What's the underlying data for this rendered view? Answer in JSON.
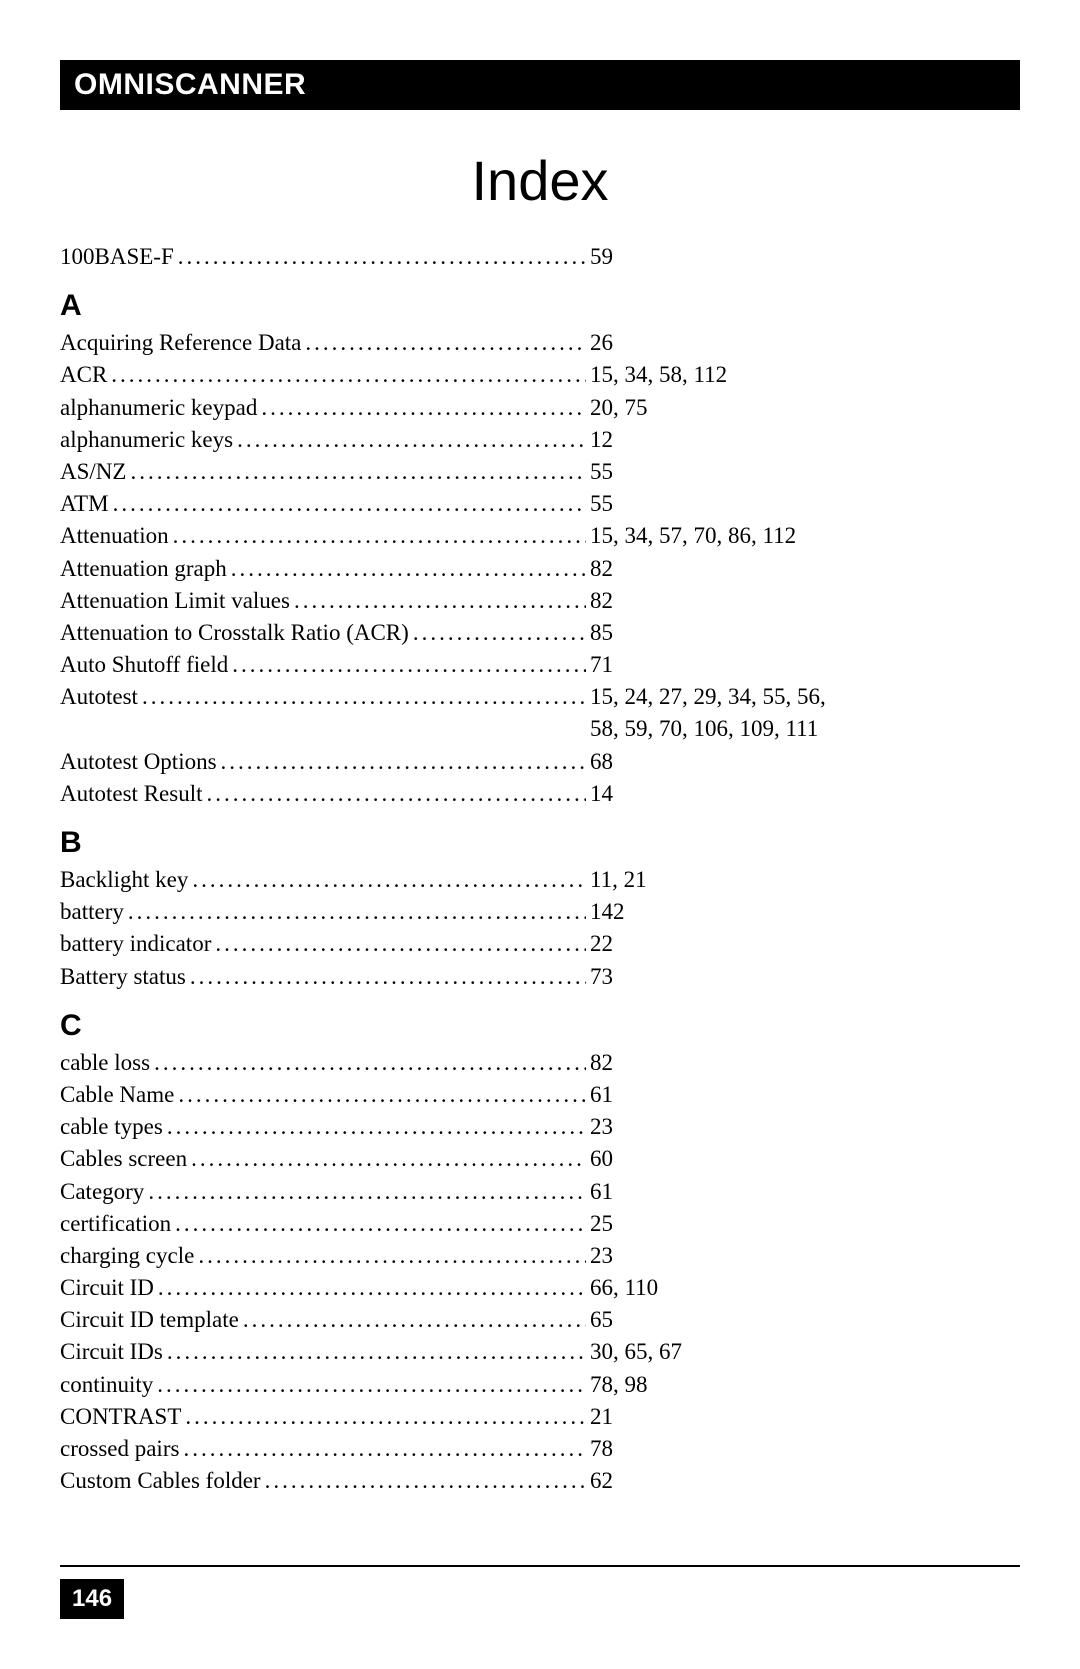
{
  "header_label": "OMNISCANNER",
  "title": "Index",
  "page_number": "146",
  "pre_entries": [
    {
      "term": "100BASE-F",
      "pages": "59"
    }
  ],
  "sections": [
    {
      "letter": "A",
      "entries": [
        {
          "term": "Acquiring Reference Data",
          "pages": "26"
        },
        {
          "term": "ACR",
          "pages": "15, 34, 58, 112"
        },
        {
          "term": "alphanumeric keypad",
          "pages": "20, 75"
        },
        {
          "term": "alphanumeric keys",
          "pages": "12"
        },
        {
          "term": "AS/NZ",
          "pages": "55"
        },
        {
          "term": "ATM",
          "pages": "55"
        },
        {
          "term": "Attenuation",
          "pages": "15, 34, 57, 70, 86, 112"
        },
        {
          "term": "Attenuation graph",
          "pages": "82"
        },
        {
          "term": "Attenuation Limit values",
          "pages": "82"
        },
        {
          "term": "Attenuation to Crosstalk Ratio (ACR)",
          "pages": "85"
        },
        {
          "term": "Auto Shutoff field",
          "pages": "71"
        },
        {
          "term": "Autotest",
          "pages": "15, 24, 27, 29, 34, 55, 56,",
          "continuation": "58, 59, 70, 106, 109, 111"
        },
        {
          "term": "Autotest Options",
          "pages": "68"
        },
        {
          "term": "Autotest Result",
          "pages": "14"
        }
      ]
    },
    {
      "letter": "B",
      "entries": [
        {
          "term": "Backlight key",
          "pages": "11, 21"
        },
        {
          "term": "battery",
          "pages": "142"
        },
        {
          "term": "battery indicator",
          "pages": "22"
        },
        {
          "term": "Battery status",
          "pages": "73"
        }
      ]
    },
    {
      "letter": "C",
      "entries": [
        {
          "term": "cable loss",
          "pages": "82"
        },
        {
          "term": "Cable Name",
          "pages": "61"
        },
        {
          "term": "cable types",
          "pages": "23"
        },
        {
          "term": "Cables screen",
          "pages": "60"
        },
        {
          "term": "Category",
          "pages": "61"
        },
        {
          "term": "certification",
          "pages": "25"
        },
        {
          "term": "charging cycle",
          "pages": "23"
        },
        {
          "term": "Circuit ID",
          "pages": "66, 110"
        },
        {
          "term": "Circuit ID template",
          "pages": "65"
        },
        {
          "term": "Circuit IDs",
          "pages": "30, 65, 67"
        },
        {
          "term": "continuity",
          "pages": "78, 98"
        },
        {
          "term": "CONTRAST",
          "pages": "21"
        },
        {
          "term": "crossed pairs",
          "pages": "78"
        },
        {
          "term": "Custom Cables folder",
          "pages": "62"
        }
      ]
    }
  ]
}
